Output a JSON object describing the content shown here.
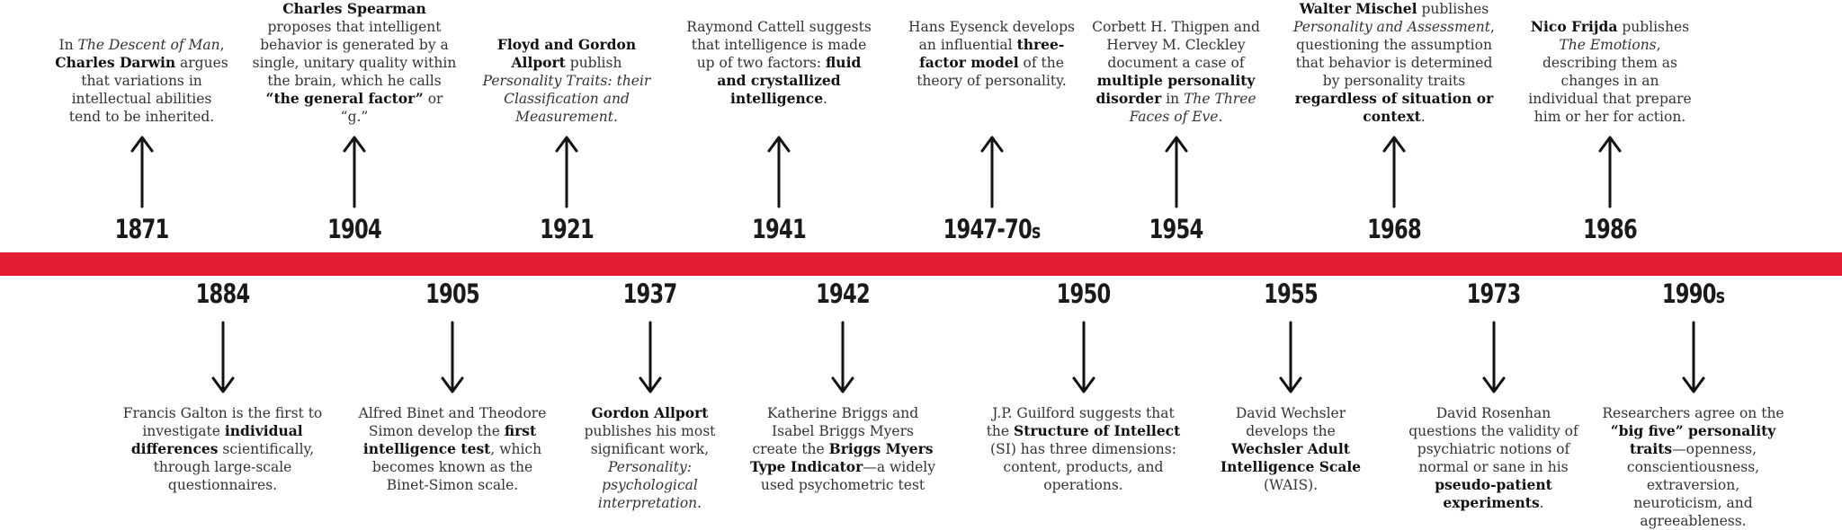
{
  "accent_color": "#e31b33",
  "events_top": [
    {
      "year": "1871",
      "parts": [
        [
          "t",
          "In "
        ],
        [
          "i",
          "The Descent of Man"
        ],
        [
          "t",
          ", "
        ],
        [
          "b",
          "Charles Darwin"
        ],
        [
          "t",
          " argues that variations in intellectual abilities tend to be inherited."
        ]
      ]
    },
    {
      "year": "1904",
      "parts": [
        [
          "b",
          "Charles Spearman"
        ],
        [
          "t",
          " proposes that intelligent behavior is generated by a single, unitary quality within the brain, which he calls "
        ],
        [
          "b",
          "“the general factor”"
        ],
        [
          "t",
          " or “g.”"
        ]
      ]
    },
    {
      "year": "1921",
      "parts": [
        [
          "b",
          "Floyd and Gordon Allport"
        ],
        [
          "t",
          " publish "
        ],
        [
          "i",
          "Personality Traits: their Classification and Measurement."
        ]
      ]
    },
    {
      "year": "1941",
      "parts": [
        [
          "t",
          "Raymond Cattell suggests that intelligence is made up of two factors: "
        ],
        [
          "b",
          "fluid and crystallized intelligence"
        ],
        [
          "t",
          "."
        ]
      ]
    },
    {
      "year": "1947-70",
      "year_suffix": "s",
      "parts": [
        [
          "t",
          "Hans Eysenck develops an influential "
        ],
        [
          "b",
          "three-factor model"
        ],
        [
          "t",
          " of the theory of personality."
        ]
      ]
    },
    {
      "year": "1954",
      "parts": [
        [
          "t",
          "Corbett H. Thigpen and Hervey M. Cleckley document a case of "
        ],
        [
          "b",
          "multiple personality disorder"
        ],
        [
          "t",
          " in "
        ],
        [
          "i",
          "The Three Faces of Eve"
        ],
        [
          "t",
          "."
        ]
      ]
    },
    {
      "year": "1968",
      "parts": [
        [
          "b",
          "Walter Mischel"
        ],
        [
          "t",
          " publishes "
        ],
        [
          "i",
          "Personality and Assessment"
        ],
        [
          "t",
          ", questioning the assumption that behavior is determined by personality traits "
        ],
        [
          "b",
          "regardless of situation or context"
        ],
        [
          "t",
          "."
        ]
      ]
    },
    {
      "year": "1986",
      "parts": [
        [
          "b",
          "Nico Frijda"
        ],
        [
          "t",
          " publishes "
        ],
        [
          "i",
          "The Emotions"
        ],
        [
          "t",
          ", describing them as changes in an individual that prepare him or her for action."
        ]
      ]
    }
  ],
  "events_bottom": [
    {
      "year": "1884",
      "parts": [
        [
          "t",
          "Francis Galton is the first to investigate "
        ],
        [
          "b",
          "individual differences"
        ],
        [
          "t",
          " scientifically, through large-scale questionnaires."
        ]
      ]
    },
    {
      "year": "1905",
      "parts": [
        [
          "t",
          "Alfred Binet and Theodore Simon develop the "
        ],
        [
          "b",
          "first intelligence test"
        ],
        [
          "t",
          ", which becomes known as the Binet-Simon scale."
        ]
      ]
    },
    {
      "year": "1937",
      "parts": [
        [
          "b",
          "Gordon Allport"
        ],
        [
          "t",
          " publishes his most significant work, "
        ],
        [
          "i",
          "Personality: psychological interpretation"
        ],
        [
          "t",
          "."
        ]
      ]
    },
    {
      "year": "1942",
      "parts": [
        [
          "t",
          "Katherine Briggs and Isabel Briggs Myers create the "
        ],
        [
          "b",
          "Briggs Myers Type Indicator"
        ],
        [
          "t",
          "—a widely used psychometric test"
        ]
      ]
    },
    {
      "year": "1950",
      "parts": [
        [
          "t",
          "J.P. Guilford suggests that the "
        ],
        [
          "b",
          "Structure of Intellect"
        ],
        [
          "t",
          " (SI) has three dimensions: content, products, and operations."
        ]
      ]
    },
    {
      "year": "1955",
      "parts": [
        [
          "t",
          "David Wechsler develops the "
        ],
        [
          "b",
          "Wechsler Adult Intelligence Scale"
        ],
        [
          "t",
          " (WAIS)."
        ]
      ]
    },
    {
      "year": "1973",
      "parts": [
        [
          "t",
          "David Rosenhan questions the validity of psychiatric notions of normal or sane in his "
        ],
        [
          "b",
          "pseudo-patient experiments"
        ],
        [
          "t",
          "."
        ]
      ]
    },
    {
      "year": "1990",
      "year_suffix": "s",
      "parts": [
        [
          "t",
          "Researchers agree on the "
        ],
        [
          "b",
          "“big five” personality traits"
        ],
        [
          "t",
          "—openness, conscientiousness, extraversion, neuroticism, and agreeableness."
        ]
      ]
    }
  ]
}
